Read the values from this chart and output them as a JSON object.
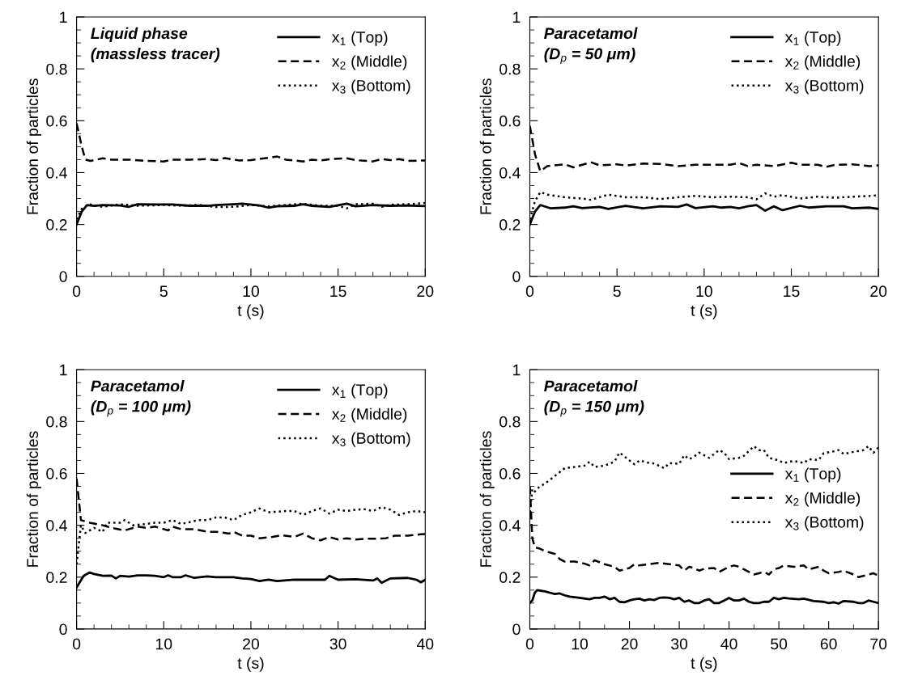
{
  "chart_data": [
    {
      "type": "line",
      "title": "Liquid phase\n(massless tracer)",
      "xlabel": "t (s)",
      "ylabel": "Fraction of particles",
      "legend": "top right",
      "xlim": [
        0,
        20
      ],
      "ylim": [
        0,
        1
      ],
      "xticks": [
        0,
        {
          "value": 1,
          "label": null
        },
        {
          "value": 2,
          "label": null
        },
        {
          "value": 3,
          "label": null
        },
        {
          "value": 4,
          "label": null
        },
        5,
        {
          "value": 6,
          "label": null
        },
        {
          "value": 7,
          "label": null
        },
        {
          "value": 8,
          "label": null
        },
        {
          "value": 9,
          "label": null
        },
        10,
        {
          "value": 11,
          "label": null
        },
        {
          "value": 12,
          "label": null
        },
        {
          "value": 13,
          "label": null
        },
        {
          "value": 14,
          "label": null
        },
        15,
        {
          "value": 16,
          "label": null
        },
        {
          "value": 17,
          "label": null
        },
        {
          "value": 18,
          "label": null
        },
        {
          "value": 19,
          "label": null
        },
        20
      ],
      "yticks": [
        0,
        {
          "value": 0.05,
          "label": null
        },
        {
          "value": 0.1,
          "label": null
        },
        {
          "value": 0.15,
          "label": null
        },
        0.2,
        {
          "value": 0.25,
          "label": null
        },
        {
          "value": 0.3,
          "label": null
        },
        {
          "value": 0.35,
          "label": null
        },
        0.4,
        {
          "value": 0.45,
          "label": null
        },
        {
          "value": 0.5,
          "label": null
        },
        {
          "value": 0.55,
          "label": null
        },
        0.6,
        {
          "value": 0.65,
          "label": null
        },
        {
          "value": 0.7,
          "label": null
        },
        {
          "value": 0.75,
          "label": null
        },
        0.8,
        {
          "value": 0.85,
          "label": null
        },
        {
          "value": 0.9,
          "label": null
        },
        {
          "value": 0.95,
          "label": null
        },
        1
      ],
      "series": [
        {
          "name": "x$_{1}$ (Top)",
          "color": "#000000",
          "line_style": "solid",
          "x": [
            0,
            0.3,
            0.6,
            1,
            1.5,
            2.5,
            3,
            3.5,
            4.5,
            5.5,
            6.5,
            7.5,
            8,
            9,
            9.5,
            10.5,
            11,
            11.5,
            12.5,
            13,
            13.5,
            14.5,
            15.5,
            16,
            17,
            18,
            19,
            20
          ],
          "values": [
            0.2,
            0.25,
            0.275,
            0.272,
            0.275,
            0.273,
            0.268,
            0.278,
            0.277,
            0.277,
            0.272,
            0.272,
            0.275,
            0.278,
            0.28,
            0.273,
            0.265,
            0.27,
            0.272,
            0.278,
            0.272,
            0.268,
            0.28,
            0.27,
            0.275,
            0.272,
            0.273,
            0.271
          ]
        },
        {
          "name": "x$_{2}$ (Middle)",
          "color": "#000000",
          "line_style": "dashed",
          "x": [
            0,
            0.3,
            0.5,
            0.8,
            1.5,
            2,
            3,
            4,
            5,
            5.5,
            6.5,
            7.5,
            8,
            8.5,
            9.3,
            10,
            11,
            11.5,
            12,
            13,
            13.5,
            14,
            14.7,
            15.5,
            16,
            17,
            17.5,
            18,
            18.5,
            19,
            20
          ],
          "values": [
            0.59,
            0.5,
            0.45,
            0.445,
            0.455,
            0.45,
            0.45,
            0.445,
            0.443,
            0.45,
            0.45,
            0.452,
            0.448,
            0.456,
            0.447,
            0.448,
            0.457,
            0.462,
            0.45,
            0.443,
            0.45,
            0.447,
            0.453,
            0.455,
            0.448,
            0.443,
            0.452,
            0.448,
            0.452,
            0.445,
            0.447
          ]
        },
        {
          "name": "x$_{3}$ (Bottom)",
          "color": "#000000",
          "line_style": "dotted",
          "x": [
            0,
            0.3,
            0.7,
            1.5,
            2.5,
            3.5,
            5,
            6,
            7,
            8,
            9,
            10,
            11,
            11.5,
            12,
            13,
            14,
            15,
            15.5,
            16,
            17,
            17.5,
            18,
            19,
            20
          ],
          "values": [
            0.22,
            0.26,
            0.278,
            0.268,
            0.278,
            0.272,
            0.275,
            0.272,
            0.276,
            0.267,
            0.268,
            0.275,
            0.27,
            0.273,
            0.275,
            0.28,
            0.272,
            0.272,
            0.262,
            0.278,
            0.28,
            0.268,
            0.276,
            0.278,
            0.283
          ]
        }
      ]
    },
    {
      "type": "line",
      "title": "Paracetamol\n(D$_{p}$ = 50 μm)",
      "xlabel": "t (s)",
      "ylabel": "Fraction of particles",
      "legend": "top right",
      "xlim": [
        0,
        20
      ],
      "ylim": [
        0,
        1
      ],
      "xticks": [
        0,
        {
          "value": 1,
          "label": null
        },
        {
          "value": 2,
          "label": null
        },
        {
          "value": 3,
          "label": null
        },
        {
          "value": 4,
          "label": null
        },
        5,
        {
          "value": 6,
          "label": null
        },
        {
          "value": 7,
          "label": null
        },
        {
          "value": 8,
          "label": null
        },
        {
          "value": 9,
          "label": null
        },
        10,
        {
          "value": 11,
          "label": null
        },
        {
          "value": 12,
          "label": null
        },
        {
          "value": 13,
          "label": null
        },
        {
          "value": 14,
          "label": null
        },
        15,
        {
          "value": 16,
          "label": null
        },
        {
          "value": 17,
          "label": null
        },
        {
          "value": 18,
          "label": null
        },
        {
          "value": 19,
          "label": null
        },
        20
      ],
      "yticks": [
        0,
        {
          "value": 0.05,
          "label": null
        },
        {
          "value": 0.1,
          "label": null
        },
        {
          "value": 0.15,
          "label": null
        },
        0.2,
        {
          "value": 0.25,
          "label": null
        },
        {
          "value": 0.3,
          "label": null
        },
        {
          "value": 0.35,
          "label": null
        },
        0.4,
        {
          "value": 0.45,
          "label": null
        },
        {
          "value": 0.5,
          "label": null
        },
        {
          "value": 0.55,
          "label": null
        },
        0.6,
        {
          "value": 0.65,
          "label": null
        },
        {
          "value": 0.7,
          "label": null
        },
        {
          "value": 0.75,
          "label": null
        },
        0.8,
        {
          "value": 0.85,
          "label": null
        },
        {
          "value": 0.9,
          "label": null
        },
        {
          "value": 0.95,
          "label": null
        },
        1
      ],
      "series": [
        {
          "name": "x$_{1}$ (Top)",
          "color": "#000000",
          "line_style": "solid",
          "x": [
            0,
            0.3,
            0.6,
            1.2,
            2,
            2.5,
            3,
            4,
            4.5,
            5.5,
            6.5,
            7.5,
            8.5,
            9,
            9.5,
            10.5,
            11,
            11.5,
            12,
            12.5,
            13,
            13.5,
            14,
            14.5,
            15.5,
            16,
            17,
            18,
            18.5,
            19.5,
            20
          ],
          "values": [
            0.2,
            0.25,
            0.275,
            0.262,
            0.265,
            0.27,
            0.263,
            0.268,
            0.26,
            0.272,
            0.262,
            0.27,
            0.268,
            0.277,
            0.263,
            0.27,
            0.265,
            0.268,
            0.262,
            0.27,
            0.275,
            0.253,
            0.27,
            0.255,
            0.272,
            0.265,
            0.27,
            0.27,
            0.262,
            0.265,
            0.26
          ]
        },
        {
          "name": "x$_{2}$ (Middle)",
          "color": "#000000",
          "line_style": "dashed",
          "x": [
            0,
            0.3,
            0.6,
            1,
            2,
            2.5,
            3.5,
            4,
            5,
            5.5,
            6.5,
            7.5,
            8.5,
            9.5,
            10.5,
            11.5,
            12,
            12.5,
            13,
            14,
            15,
            15.5,
            16.5,
            17,
            17.5,
            18.5,
            19.5,
            20
          ],
          "values": [
            0.58,
            0.47,
            0.405,
            0.425,
            0.432,
            0.42,
            0.44,
            0.428,
            0.432,
            0.427,
            0.435,
            0.433,
            0.425,
            0.43,
            0.43,
            0.43,
            0.437,
            0.425,
            0.43,
            0.425,
            0.438,
            0.43,
            0.43,
            0.422,
            0.43,
            0.432,
            0.425,
            0.428
          ]
        },
        {
          "name": "x$_{3}$ (Bottom)",
          "color": "#000000",
          "line_style": "dotted",
          "x": [
            0,
            0.3,
            0.6,
            1,
            2,
            3,
            3.5,
            4.5,
            5.5,
            6.5,
            7.5,
            8.5,
            9.5,
            10.5,
            11.5,
            12.5,
            13,
            13.5,
            14,
            14.5,
            15.5,
            16.5,
            17.5,
            18.5,
            19.5,
            20
          ],
          "values": [
            0.22,
            0.29,
            0.325,
            0.315,
            0.305,
            0.3,
            0.295,
            0.315,
            0.305,
            0.305,
            0.298,
            0.305,
            0.31,
            0.305,
            0.307,
            0.305,
            0.297,
            0.32,
            0.307,
            0.313,
            0.3,
            0.307,
            0.303,
            0.307,
            0.31,
            0.313
          ]
        }
      ]
    },
    {
      "type": "line",
      "title": "Paracetamol\n(D$_{p}$ = 100 μm)",
      "xlabel": "t (s)",
      "ylabel": "Fraction of particles",
      "legend": "top right",
      "xlim": [
        0,
        40
      ],
      "ylim": [
        0,
        1
      ],
      "xticks": [
        0,
        {
          "value": 2,
          "label": null
        },
        {
          "value": 4,
          "label": null
        },
        {
          "value": 6,
          "label": null
        },
        {
          "value": 8,
          "label": null
        },
        10,
        {
          "value": 12,
          "label": null
        },
        {
          "value": 14,
          "label": null
        },
        {
          "value": 16,
          "label": null
        },
        {
          "value": 18,
          "label": null
        },
        20,
        {
          "value": 22,
          "label": null
        },
        {
          "value": 24,
          "label": null
        },
        {
          "value": 26,
          "label": null
        },
        {
          "value": 28,
          "label": null
        },
        30,
        {
          "value": 32,
          "label": null
        },
        {
          "value": 34,
          "label": null
        },
        {
          "value": 36,
          "label": null
        },
        {
          "value": 38,
          "label": null
        },
        40
      ],
      "yticks": [
        0,
        {
          "value": 0.05,
          "label": null
        },
        {
          "value": 0.1,
          "label": null
        },
        {
          "value": 0.15,
          "label": null
        },
        0.2,
        {
          "value": 0.25,
          "label": null
        },
        {
          "value": 0.3,
          "label": null
        },
        {
          "value": 0.35,
          "label": null
        },
        0.4,
        {
          "value": 0.45,
          "label": null
        },
        {
          "value": 0.5,
          "label": null
        },
        {
          "value": 0.55,
          "label": null
        },
        0.6,
        {
          "value": 0.65,
          "label": null
        },
        {
          "value": 0.7,
          "label": null
        },
        {
          "value": 0.75,
          "label": null
        },
        0.8,
        {
          "value": 0.85,
          "label": null
        },
        {
          "value": 0.9,
          "label": null
        },
        {
          "value": 0.95,
          "label": null
        },
        1
      ],
      "series": [
        {
          "name": "x$_{1}$ (Top)",
          "color": "#000000",
          "line_style": "solid",
          "x": [
            0,
            0.8,
            1.5,
            2,
            3,
            4,
            4.5,
            5,
            6,
            7,
            8,
            9,
            10,
            10.5,
            11,
            12,
            12.5,
            13.5,
            15,
            16,
            18,
            19,
            20,
            21,
            22,
            23,
            25,
            27,
            28.5,
            29,
            30,
            32,
            34,
            34.5,
            35,
            36,
            38,
            39,
            39.5,
            40
          ],
          "values": [
            0.16,
            0.205,
            0.218,
            0.212,
            0.205,
            0.206,
            0.195,
            0.205,
            0.202,
            0.207,
            0.207,
            0.205,
            0.2,
            0.207,
            0.2,
            0.2,
            0.207,
            0.197,
            0.203,
            0.2,
            0.2,
            0.195,
            0.193,
            0.185,
            0.19,
            0.185,
            0.19,
            0.19,
            0.19,
            0.205,
            0.19,
            0.192,
            0.187,
            0.195,
            0.178,
            0.195,
            0.197,
            0.19,
            0.18,
            0.19
          ]
        },
        {
          "name": "x$_{2}$ (Middle)",
          "color": "#000000",
          "line_style": "dashed",
          "x": [
            0,
            0.5,
            1.5,
            3,
            4,
            5.5,
            7,
            8,
            9,
            10.5,
            11,
            12,
            13.5,
            15,
            16,
            17.5,
            18,
            19,
            20,
            21,
            22.5,
            23.5,
            25,
            26,
            27,
            28,
            29,
            30,
            31,
            32,
            33,
            34,
            35.5,
            36.5,
            38,
            39.5,
            40
          ],
          "values": [
            0.58,
            0.42,
            0.41,
            0.4,
            0.39,
            0.38,
            0.395,
            0.39,
            0.395,
            0.38,
            0.395,
            0.385,
            0.385,
            0.375,
            0.375,
            0.368,
            0.375,
            0.36,
            0.36,
            0.35,
            0.355,
            0.362,
            0.355,
            0.368,
            0.35,
            0.342,
            0.355,
            0.345,
            0.35,
            0.345,
            0.348,
            0.348,
            0.35,
            0.36,
            0.36,
            0.365,
            0.366
          ]
        },
        {
          "name": "x$_{3}$ (Bottom)",
          "color": "#000000",
          "line_style": "dotted",
          "x": [
            0,
            0.5,
            1,
            2,
            3,
            3.5,
            5,
            5.5,
            6.5,
            8,
            9,
            10,
            11,
            12,
            14,
            15,
            16,
            17,
            18,
            19,
            20,
            21,
            22,
            24,
            25,
            26,
            27,
            28,
            29,
            30,
            31,
            32,
            33,
            34,
            35,
            36,
            37,
            38,
            39,
            40
          ],
          "values": [
            0.25,
            0.4,
            0.37,
            0.39,
            0.375,
            0.41,
            0.41,
            0.42,
            0.4,
            0.405,
            0.41,
            0.41,
            0.42,
            0.405,
            0.42,
            0.42,
            0.43,
            0.43,
            0.42,
            0.44,
            0.45,
            0.465,
            0.45,
            0.455,
            0.455,
            0.44,
            0.455,
            0.465,
            0.445,
            0.46,
            0.455,
            0.46,
            0.462,
            0.455,
            0.47,
            0.46,
            0.44,
            0.45,
            0.455,
            0.45
          ]
        }
      ]
    },
    {
      "type": "line",
      "title": "Paracetamol\n(D$_{p}$ = 150 μm)",
      "xlabel": "t (s)",
      "ylabel": "Fraction of particles",
      "legend": "right",
      "xlim": [
        0,
        70
      ],
      "ylim": [
        0,
        1
      ],
      "xticks": [
        0,
        {
          "value": 5,
          "label": null
        },
        10,
        {
          "value": 15,
          "label": null
        },
        20,
        {
          "value": 25,
          "label": null
        },
        30,
        {
          "value": 35,
          "label": null
        },
        40,
        {
          "value": 45,
          "label": null
        },
        50,
        {
          "value": 55,
          "label": null
        },
        60,
        {
          "value": 65,
          "label": null
        },
        70
      ],
      "yticks": [
        0,
        {
          "value": 0.05,
          "label": null
        },
        {
          "value": 0.1,
          "label": null
        },
        {
          "value": 0.15,
          "label": null
        },
        0.2,
        {
          "value": 0.25,
          "label": null
        },
        {
          "value": 0.3,
          "label": null
        },
        {
          "value": 0.35,
          "label": null
        },
        0.4,
        {
          "value": 0.45,
          "label": null
        },
        {
          "value": 0.5,
          "label": null
        },
        {
          "value": 0.55,
          "label": null
        },
        0.6,
        {
          "value": 0.65,
          "label": null
        },
        {
          "value": 0.7,
          "label": null
        },
        {
          "value": 0.75,
          "label": null
        },
        0.8,
        {
          "value": 0.85,
          "label": null
        },
        {
          "value": 0.9,
          "label": null
        },
        {
          "value": 0.95,
          "label": null
        },
        1
      ],
      "series": [
        {
          "name": "x$_{1}$ (Top)",
          "color": "#000000",
          "line_style": "solid",
          "x": [
            0,
            0.5,
            1,
            1.5,
            3,
            4,
            5,
            6,
            7,
            8,
            10,
            12,
            13,
            14,
            15,
            16,
            17,
            18,
            19,
            20,
            21,
            22,
            23,
            24,
            25,
            26,
            27,
            28,
            29,
            30,
            31,
            32,
            33,
            34,
            35,
            36,
            37,
            38,
            39,
            40,
            41,
            42,
            43,
            44,
            45,
            46,
            47,
            48,
            49,
            50,
            51,
            52,
            54,
            55,
            57,
            59,
            60,
            61,
            62,
            63,
            65,
            66,
            67,
            68,
            69,
            70
          ],
          "values": [
            0.1,
            0.11,
            0.14,
            0.15,
            0.145,
            0.14,
            0.135,
            0.137,
            0.13,
            0.125,
            0.12,
            0.115,
            0.12,
            0.12,
            0.125,
            0.115,
            0.12,
            0.105,
            0.103,
            0.11,
            0.115,
            0.117,
            0.11,
            0.115,
            0.112,
            0.12,
            0.122,
            0.12,
            0.115,
            0.12,
            0.105,
            0.11,
            0.1,
            0.1,
            0.11,
            0.115,
            0.1,
            0.1,
            0.11,
            0.12,
            0.11,
            0.11,
            0.117,
            0.105,
            0.1,
            0.1,
            0.105,
            0.105,
            0.12,
            0.115,
            0.12,
            0.118,
            0.115,
            0.117,
            0.108,
            0.105,
            0.1,
            0.103,
            0.098,
            0.108,
            0.105,
            0.1,
            0.1,
            0.11,
            0.105,
            0.1
          ]
        },
        {
          "name": "x$_{2}$ (Middle)",
          "color": "#000000",
          "line_style": "dashed",
          "x": [
            0,
            0.5,
            1,
            2,
            3,
            4,
            5,
            6,
            7,
            9,
            11,
            12,
            13,
            15,
            17,
            18,
            20,
            21,
            22,
            24,
            26,
            28,
            30,
            31,
            32,
            33,
            34,
            35,
            37,
            38,
            40,
            41,
            42,
            43,
            45,
            46,
            47,
            48,
            49,
            50,
            51,
            53,
            55,
            56,
            58,
            59,
            60,
            62,
            63,
            65,
            66,
            68,
            69,
            70
          ],
          "values": [
            0.55,
            0.35,
            0.315,
            0.31,
            0.3,
            0.295,
            0.29,
            0.27,
            0.26,
            0.26,
            0.252,
            0.245,
            0.265,
            0.25,
            0.24,
            0.225,
            0.235,
            0.25,
            0.245,
            0.25,
            0.255,
            0.25,
            0.245,
            0.225,
            0.24,
            0.235,
            0.225,
            0.232,
            0.235,
            0.22,
            0.24,
            0.245,
            0.24,
            0.23,
            0.21,
            0.215,
            0.22,
            0.21,
            0.23,
            0.235,
            0.245,
            0.24,
            0.245,
            0.23,
            0.24,
            0.225,
            0.215,
            0.22,
            0.225,
            0.21,
            0.2,
            0.21,
            0.215,
            0.205
          ]
        },
        {
          "name": "x$_{3}$ (Bottom)",
          "color": "#000000",
          "line_style": "dotted",
          "x": [
            0,
            0.5,
            1,
            2,
            3,
            5,
            7,
            9,
            11,
            12,
            13,
            15,
            17,
            18,
            19,
            21,
            22,
            24,
            25,
            27,
            28,
            30,
            31,
            32,
            33,
            34,
            36,
            38,
            39,
            40,
            42,
            43,
            45,
            46,
            47,
            48,
            50,
            51,
            53,
            55,
            56,
            58,
            59,
            61,
            62,
            63,
            65,
            67,
            68,
            69,
            70
          ],
          "values": [
            0.45,
            0.54,
            0.53,
            0.55,
            0.56,
            0.59,
            0.62,
            0.625,
            0.63,
            0.645,
            0.625,
            0.63,
            0.645,
            0.68,
            0.665,
            0.635,
            0.65,
            0.64,
            0.638,
            0.62,
            0.64,
            0.637,
            0.67,
            0.655,
            0.665,
            0.68,
            0.66,
            0.69,
            0.68,
            0.655,
            0.66,
            0.668,
            0.705,
            0.69,
            0.69,
            0.66,
            0.65,
            0.64,
            0.648,
            0.64,
            0.655,
            0.652,
            0.678,
            0.685,
            0.69,
            0.675,
            0.683,
            0.69,
            0.705,
            0.68,
            0.7
          ]
        }
      ]
    }
  ]
}
